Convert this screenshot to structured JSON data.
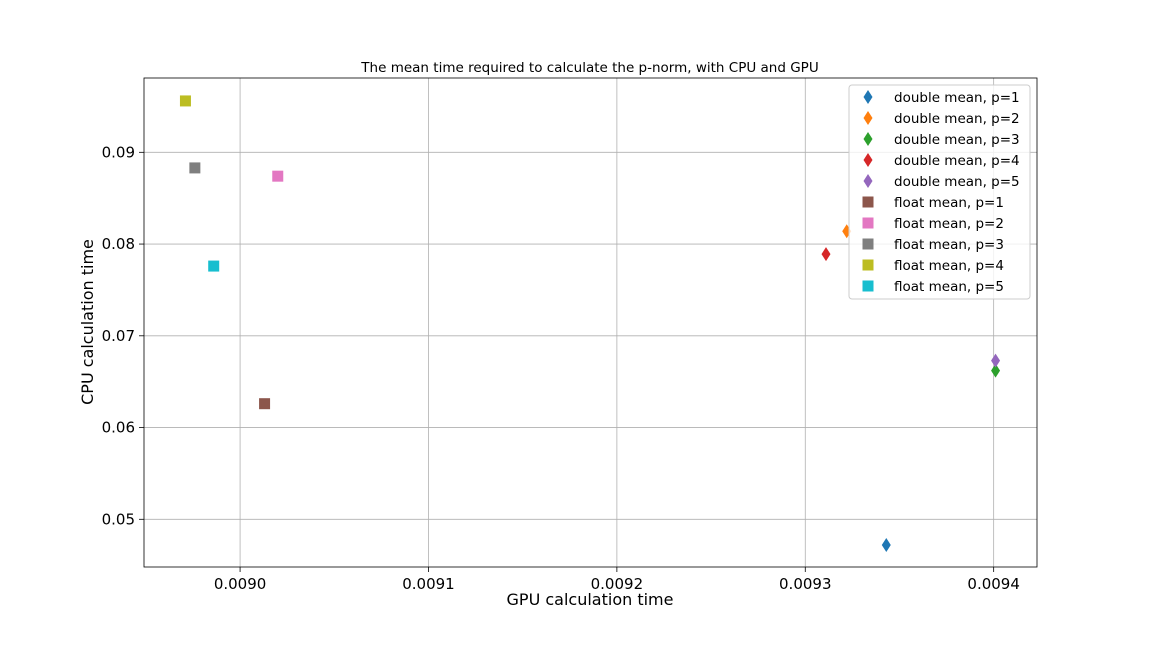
{
  "chart_data": {
    "type": "scatter",
    "title": "The mean time required to calculate the p-norm, with CPU and GPU",
    "xlabel": "GPU calculation time",
    "ylabel": "CPU calculation time",
    "xlim": [
      0.008949,
      0.009423
    ],
    "ylim": [
      0.0448,
      0.0981
    ],
    "xticks": [
      0.009,
      0.0091,
      0.0092,
      0.0093,
      0.0094
    ],
    "xtick_labels": [
      "0.0090",
      "0.0091",
      "0.0092",
      "0.0093",
      "0.0094"
    ],
    "yticks": [
      0.05,
      0.06,
      0.07,
      0.08,
      0.09
    ],
    "ytick_labels": [
      "0.05",
      "0.06",
      "0.07",
      "0.08",
      "0.09"
    ],
    "grid": true,
    "legend_position": "top-right",
    "series": [
      {
        "name": "double mean, p=1",
        "marker": "diamond",
        "color": "#1f77b4",
        "x": 0.009343,
        "y": 0.0472
      },
      {
        "name": "double mean, p=2",
        "marker": "diamond",
        "color": "#ff7f0e",
        "x": 0.009322,
        "y": 0.0814
      },
      {
        "name": "double mean, p=3",
        "marker": "diamond",
        "color": "#2ca02c",
        "x": 0.009401,
        "y": 0.0662
      },
      {
        "name": "double mean, p=4",
        "marker": "diamond",
        "color": "#d62728",
        "x": 0.009311,
        "y": 0.0789
      },
      {
        "name": "double mean, p=5",
        "marker": "diamond",
        "color": "#9467bd",
        "x": 0.009401,
        "y": 0.0673
      },
      {
        "name": "float mean, p=1",
        "marker": "square",
        "color": "#8c564b",
        "x": 0.009013,
        "y": 0.0626
      },
      {
        "name": "float mean, p=2",
        "marker": "square",
        "color": "#e377c2",
        "x": 0.00902,
        "y": 0.0874
      },
      {
        "name": "float mean, p=3",
        "marker": "square",
        "color": "#7f7f7f",
        "x": 0.008976,
        "y": 0.0883
      },
      {
        "name": "float mean, p=4",
        "marker": "square",
        "color": "#bcbd22",
        "x": 0.008971,
        "y": 0.0956
      },
      {
        "name": "float mean, p=5",
        "marker": "square",
        "color": "#17becf",
        "x": 0.008986,
        "y": 0.0776
      }
    ]
  }
}
